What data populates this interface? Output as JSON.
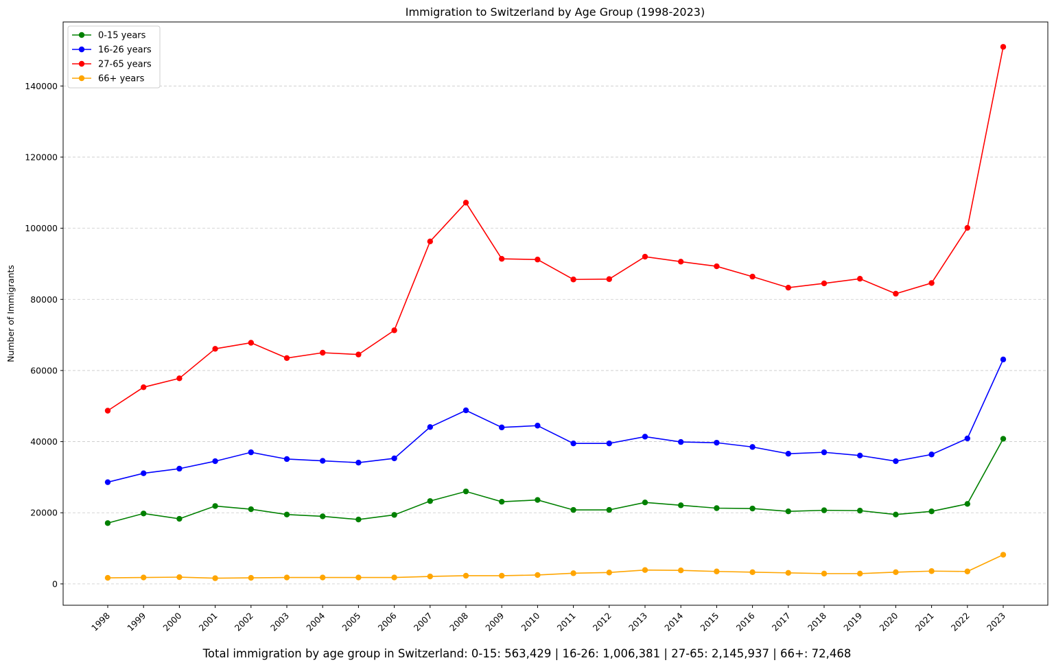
{
  "chart_data": {
    "type": "line",
    "title": "Immigration to Switzerland by Age Group (1998-2023)",
    "xlabel": "",
    "ylabel": "Number of Immigrants",
    "x": [
      "1998",
      "1999",
      "2000",
      "2001",
      "2002",
      "2003",
      "2004",
      "2005",
      "2006",
      "2007",
      "2008",
      "2009",
      "2010",
      "2011",
      "2012",
      "2013",
      "2014",
      "2015",
      "2016",
      "2017",
      "2018",
      "2019",
      "2020",
      "2021",
      "2022",
      "2023"
    ],
    "yticks": [
      "0",
      "20000",
      "40000",
      "60000",
      "80000",
      "100000",
      "120000",
      "140000"
    ],
    "ylim": [
      -6000,
      158000
    ],
    "grid": "y-dashed",
    "legend": "top-left",
    "series": [
      {
        "name": "0-15 years",
        "color": "#008000",
        "values": [
          17100,
          19800,
          18300,
          21900,
          21000,
          19500,
          19000,
          18100,
          19400,
          23300,
          26000,
          23100,
          23600,
          20800,
          20800,
          22900,
          22100,
          21300,
          21200,
          20400,
          20700,
          20600,
          19500,
          20400,
          22500,
          40800
        ]
      },
      {
        "name": "16-26 years",
        "color": "#0000ff",
        "values": [
          28600,
          31100,
          32400,
          34500,
          37000,
          35100,
          34600,
          34100,
          35300,
          44100,
          48800,
          44000,
          44500,
          39500,
          39500,
          41400,
          39900,
          39700,
          38500,
          36600,
          37000,
          36100,
          34500,
          36400,
          40900,
          63100
        ]
      },
      {
        "name": "27-65 years",
        "color": "#ff0000",
        "values": [
          48700,
          55300,
          57800,
          66100,
          67800,
          63500,
          65000,
          64500,
          71300,
          96300,
          107200,
          91400,
          91200,
          85600,
          85700,
          92000,
          90600,
          89300,
          86400,
          83300,
          84500,
          85800,
          81600,
          84600,
          100100,
          151000
        ]
      },
      {
        "name": "66+ years",
        "color": "#ffa500",
        "values": [
          1700,
          1800,
          1900,
          1600,
          1700,
          1800,
          1800,
          1800,
          1800,
          2100,
          2300,
          2300,
          2500,
          3000,
          3200,
          3900,
          3800,
          3500,
          3300,
          3100,
          2900,
          2900,
          3300,
          3600,
          3500,
          8200
        ]
      }
    ],
    "footer": "Total immigration by age group in Switzerland: 0-15: 563,429 | 16-26: 1,006,381 | 27-65: 2,145,937 | 66+: 72,468"
  }
}
